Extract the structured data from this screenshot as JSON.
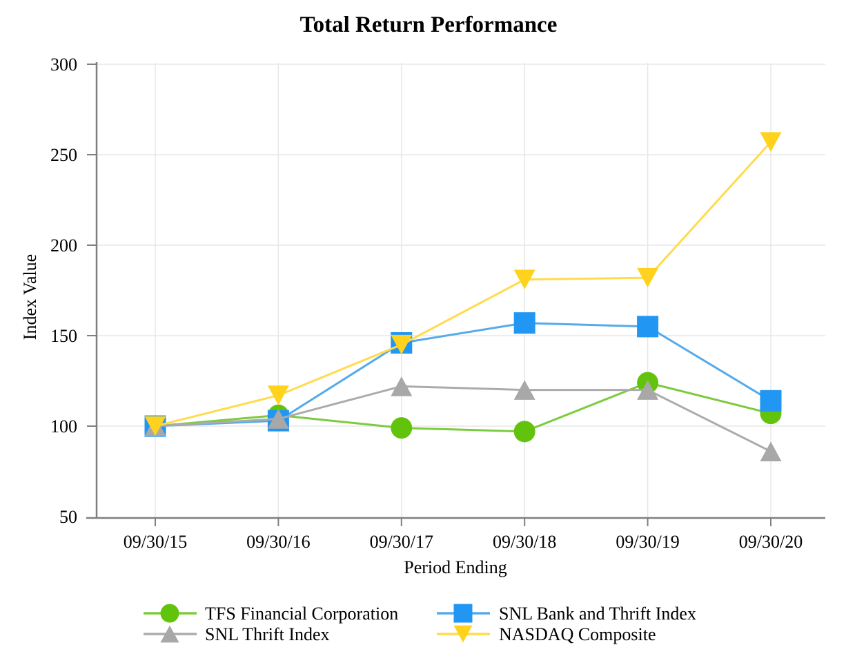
{
  "page": {
    "background": "#FFFFFF"
  },
  "chart_data": {
    "type": "line",
    "title": "Total Return Performance",
    "xlabel": "Period Ending",
    "ylabel": "Index Value",
    "ylim": [
      50,
      300
    ],
    "yticks": [
      50,
      100,
      150,
      200,
      250,
      300
    ],
    "grid": true,
    "legend_position": "bottom-two-columns",
    "categories": [
      "09/30/15",
      "09/30/16",
      "09/30/17",
      "09/30/18",
      "09/30/19",
      "09/30/20"
    ],
    "series": [
      {
        "name": "TFS Financial Corporation",
        "marker": "circle",
        "marker_color": "#62C30C",
        "line_color": "#7CCB3E",
        "values": [
          100,
          106,
          99,
          97,
          124,
          107
        ]
      },
      {
        "name": "SNL Bank and Thrift Index",
        "marker": "square",
        "marker_color": "#2196F3",
        "line_color": "#55AAEB",
        "values": [
          100,
          103,
          146,
          157,
          155,
          114
        ]
      },
      {
        "name": "SNL Thrift Index",
        "marker": "triangle-up",
        "marker_color": "#A8A8A8",
        "line_color": "#ABABAB",
        "values": [
          100,
          104,
          122,
          120,
          120,
          86
        ]
      },
      {
        "name": "NASDAQ Composite",
        "marker": "triangle-down",
        "marker_color": "#FFD21E",
        "line_color": "#FFDB4D",
        "values": [
          100,
          117,
          145,
          181,
          182,
          257
        ]
      }
    ],
    "colors": {
      "axis": "#7F7F7F",
      "gridline": "#E7E7E7",
      "text": "#000000"
    }
  }
}
